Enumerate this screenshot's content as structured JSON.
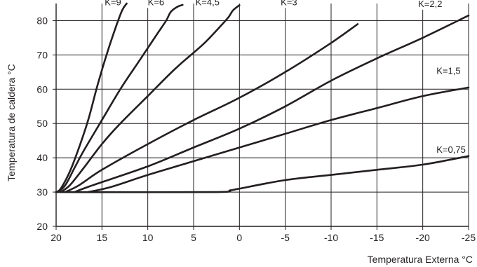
{
  "chart_data": {
    "type": "line",
    "title": "",
    "xlabel": "Temperatura Externa °C",
    "ylabel": "Temperatura de caldera °C",
    "xlim": [
      20,
      -25
    ],
    "ylim": [
      20,
      85
    ],
    "x_ticks": [
      20,
      15,
      10,
      5,
      0,
      -5,
      -10,
      -15,
      -20,
      -25
    ],
    "x_tick_labels": [
      "20",
      "15",
      "10",
      "5",
      "0",
      "-5",
      "-10",
      "-15",
      "-20",
      "-25"
    ],
    "y_ticks": [
      20,
      30,
      40,
      50,
      60,
      70,
      80
    ],
    "y_tick_labels": [
      "20",
      "30",
      "40",
      "50",
      "60",
      "70",
      "80"
    ],
    "grid": true,
    "series": [
      {
        "name": "K=9",
        "points": [
          [
            20,
            30
          ],
          [
            19.5,
            31
          ],
          [
            18.5,
            36
          ],
          [
            17.5,
            43
          ],
          [
            16.5,
            51
          ],
          [
            15.5,
            61
          ],
          [
            14.5,
            70
          ],
          [
            13.5,
            78
          ],
          [
            12.8,
            83
          ],
          [
            12.3,
            85
          ]
        ]
      },
      {
        "name": "K=6",
        "points": [
          [
            19.8,
            30
          ],
          [
            19,
            32
          ],
          [
            18,
            37
          ],
          [
            17,
            42
          ],
          [
            15,
            51
          ],
          [
            13,
            60
          ],
          [
            11,
            68
          ],
          [
            9,
            76
          ],
          [
            8,
            80
          ],
          [
            7.5,
            82.5
          ],
          [
            6.8,
            84
          ],
          [
            6.2,
            84.6
          ]
        ]
      },
      {
        "name": "K=4,5",
        "points": [
          [
            19.5,
            30
          ],
          [
            18.5,
            32
          ],
          [
            17,
            37
          ],
          [
            15,
            44
          ],
          [
            13,
            50
          ],
          [
            10,
            58
          ],
          [
            7,
            66
          ],
          [
            4,
            73
          ],
          [
            2.2,
            78
          ],
          [
            1.2,
            81
          ],
          [
            0.7,
            83
          ],
          [
            0,
            84.5
          ]
        ]
      },
      {
        "name": "K=3",
        "points": [
          [
            19,
            30
          ],
          [
            17.5,
            32
          ],
          [
            15,
            36.5
          ],
          [
            10,
            44
          ],
          [
            5,
            51
          ],
          [
            0,
            57.5
          ],
          [
            -5,
            65
          ],
          [
            -10,
            73.5
          ],
          [
            -12.9,
            79
          ]
        ]
      },
      {
        "name": "K=2,2",
        "points": [
          [
            18,
            30
          ],
          [
            16,
            32
          ],
          [
            10,
            37.5
          ],
          [
            5,
            43
          ],
          [
            0,
            48.5
          ],
          [
            -5,
            55
          ],
          [
            -10,
            62.5
          ],
          [
            -15,
            69
          ],
          [
            -20,
            75
          ],
          [
            -25,
            81.5
          ]
        ]
      },
      {
        "name": "K=1,5",
        "points": [
          [
            16.5,
            30
          ],
          [
            14,
            31.5
          ],
          [
            10,
            35
          ],
          [
            5,
            39
          ],
          [
            0,
            43
          ],
          [
            -5,
            47
          ],
          [
            -10,
            51
          ],
          [
            -15,
            54.5
          ],
          [
            -20,
            58
          ],
          [
            -25,
            60.5
          ]
        ]
      },
      {
        "name": "K=0,75",
        "points": [
          [
            20,
            30
          ],
          [
            3,
            30
          ],
          [
            1,
            30.5
          ],
          [
            0,
            31
          ],
          [
            -5,
            33.5
          ],
          [
            -10,
            35
          ],
          [
            -15,
            36.5
          ],
          [
            -20,
            38
          ],
          [
            -25,
            40.5
          ]
        ]
      }
    ],
    "labels": [
      {
        "text": "K=9",
        "x": 14.7,
        "y": 84.5
      },
      {
        "text": "K=6",
        "x": 10,
        "y": 84.5
      },
      {
        "text": "K=4,5",
        "x": 4.8,
        "y": 84.5
      },
      {
        "text": "K=3",
        "x": -4.5,
        "y": 84.5
      },
      {
        "text": "K=2,2",
        "x": -19.5,
        "y": 84
      },
      {
        "text": "K=1,5",
        "x": -21.5,
        "y": 64.5
      },
      {
        "text": "K=0,75",
        "x": -21.5,
        "y": 41.5
      }
    ]
  }
}
